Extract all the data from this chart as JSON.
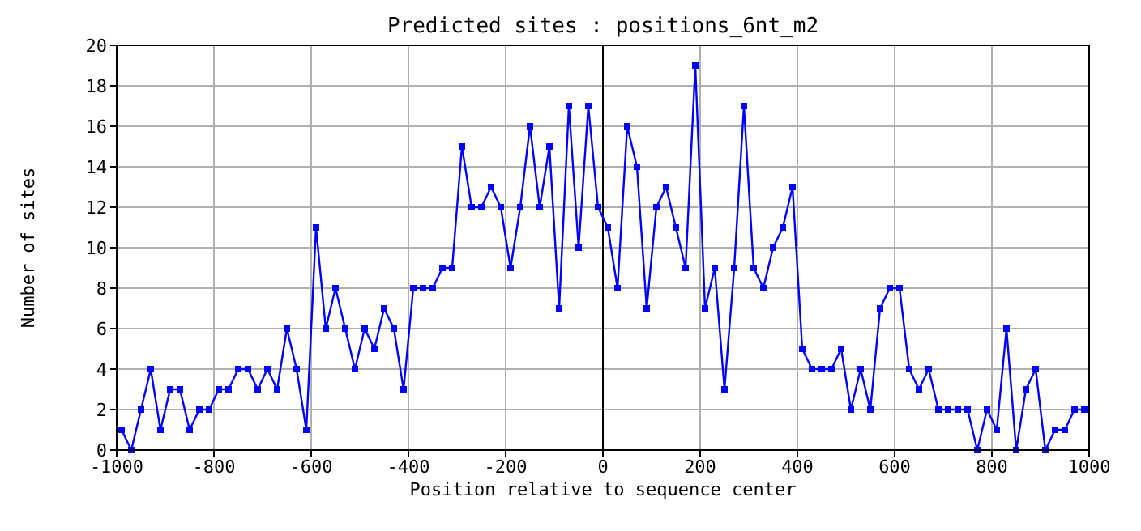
{
  "chart_data": {
    "type": "line",
    "title": "Predicted sites : positions_6nt_m2",
    "xlabel": "Position relative to sequence center",
    "ylabel": "Number of sites",
    "x": [
      -990,
      -970,
      -950,
      -930,
      -910,
      -890,
      -870,
      -850,
      -830,
      -810,
      -790,
      -770,
      -750,
      -730,
      -710,
      -690,
      -670,
      -650,
      -630,
      -610,
      -590,
      -570,
      -550,
      -530,
      -510,
      -490,
      -470,
      -450,
      -430,
      -410,
      -390,
      -370,
      -350,
      -330,
      -310,
      -290,
      -270,
      -250,
      -230,
      -210,
      -190,
      -170,
      -150,
      -130,
      -110,
      -90,
      -70,
      -50,
      -30,
      -10,
      10,
      30,
      50,
      70,
      90,
      110,
      130,
      150,
      170,
      190,
      210,
      230,
      250,
      270,
      290,
      310,
      330,
      350,
      370,
      390,
      410,
      430,
      450,
      470,
      490,
      510,
      530,
      550,
      570,
      590,
      610,
      630,
      650,
      670,
      690,
      710,
      730,
      750,
      770,
      790,
      810,
      830,
      850,
      870,
      890,
      910,
      930,
      950,
      970,
      990
    ],
    "series": [
      {
        "color": "#0000ff",
        "values": [
          1,
          0,
          2,
          4,
          1,
          3,
          3,
          1,
          2,
          2,
          3,
          3,
          4,
          4,
          3,
          4,
          3,
          6,
          4,
          1,
          11,
          6,
          8,
          6,
          4,
          6,
          5,
          7,
          6,
          3,
          8,
          8,
          8,
          9,
          9,
          15,
          12,
          12,
          13,
          12,
          9,
          12,
          16,
          12,
          15,
          7,
          17,
          10,
          17,
          12,
          11,
          8,
          16,
          14,
          7,
          12,
          13,
          11,
          9,
          19,
          7,
          9,
          3,
          9,
          17,
          9,
          8,
          10,
          11,
          13,
          5,
          4,
          4,
          4,
          5,
          2,
          4,
          2,
          7,
          8,
          8,
          4,
          3,
          4,
          2,
          2,
          2,
          2,
          0,
          2,
          1,
          6,
          0,
          3,
          4,
          0,
          1,
          1,
          2,
          2
        ]
      }
    ],
    "xlim": [
      -1000,
      1000
    ],
    "ylim": [
      0,
      20
    ],
    "xticks": [
      -1000,
      -800,
      -600,
      -400,
      -200,
      0,
      200,
      400,
      600,
      800,
      1000
    ],
    "yticks": [
      0,
      2,
      4,
      6,
      8,
      10,
      12,
      14,
      16,
      18,
      20
    ],
    "ref_lines": [
      {
        "axis": "x",
        "value": 0,
        "color": "#000000"
      }
    ],
    "grid": true,
    "marker": "square",
    "line_style": "solid"
  }
}
